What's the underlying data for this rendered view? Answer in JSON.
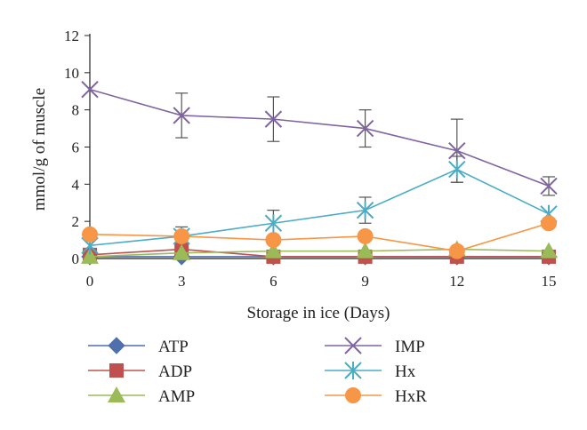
{
  "chart_data": {
    "type": "line",
    "title": "",
    "xlabel": "Storage in ice (Days)",
    "ylabel": "mmol/g of muscle",
    "x": [
      0,
      3,
      6,
      9,
      12,
      15
    ],
    "xlim": [
      0,
      15
    ],
    "ylim": [
      0,
      12
    ],
    "yticks": [
      0,
      2,
      4,
      6,
      8,
      10,
      12
    ],
    "grid": false,
    "legend_position": "bottom",
    "series": [
      {
        "name": "ATP",
        "marker": "diamond",
        "color": "#4f6fad",
        "values": [
          0.1,
          0.1,
          0.1,
          0.1,
          0.1,
          0.1
        ]
      },
      {
        "name": "ADP",
        "marker": "square",
        "color": "#c0504d",
        "values": [
          0.2,
          0.5,
          0.1,
          0.1,
          0.1,
          0.1
        ]
      },
      {
        "name": "AMP",
        "marker": "triangle",
        "color": "#9bbb59",
        "values": [
          0.1,
          0.3,
          0.4,
          0.4,
          0.5,
          0.4
        ]
      },
      {
        "name": "IMP",
        "marker": "x",
        "color": "#8064a2",
        "values": [
          9.1,
          7.7,
          7.5,
          7.0,
          5.8,
          3.9
        ],
        "error": [
          0,
          1.2,
          1.2,
          1.0,
          1.7,
          0.5
        ]
      },
      {
        "name": "Hx",
        "marker": "star",
        "color": "#4bacc6",
        "values": [
          0.7,
          1.2,
          1.9,
          2.6,
          4.8,
          2.4
        ],
        "error": [
          0,
          0.5,
          0.7,
          0.7,
          0.7,
          0
        ]
      },
      {
        "name": "HxR",
        "marker": "circle",
        "color": "#f79646",
        "values": [
          1.3,
          1.2,
          1.0,
          1.2,
          0.4,
          1.9
        ]
      }
    ]
  }
}
